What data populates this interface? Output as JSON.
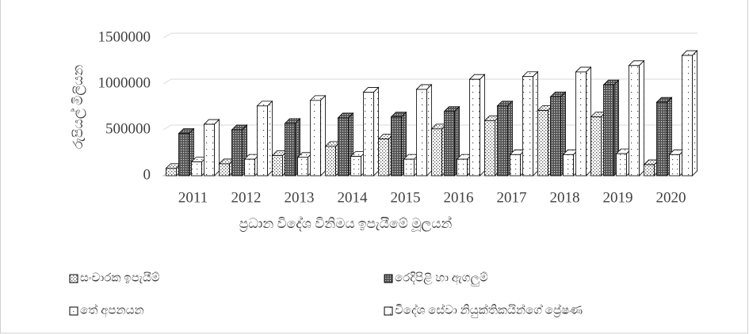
{
  "chart_data": {
    "type": "bar3d",
    "x_label": "ප්‍රධාන විදේශ විනිමය ඉපැයීමේ මූලයන්",
    "y_label": "රුපියල් මිලියන",
    "categories": [
      "2011",
      "2012",
      "2013",
      "2014",
      "2015",
      "2016",
      "2017",
      "2018",
      "2019",
      "2020"
    ],
    "series": [
      {
        "name": "සංචාරක ඉපැයීම්",
        "values": [
          80000,
          130000,
          220000,
          320000,
          400000,
          510000,
          600000,
          710000,
          640000,
          120000
        ]
      },
      {
        "name": "රෙදිපිළි හා ඇගලුම්",
        "values": [
          460000,
          500000,
          570000,
          630000,
          640000,
          700000,
          760000,
          860000,
          990000,
          800000
        ]
      },
      {
        "name": "තේ අපනයන",
        "values": [
          150000,
          180000,
          200000,
          210000,
          180000,
          180000,
          230000,
          230000,
          240000,
          230000
        ]
      },
      {
        "name": "විදේශ සේවා නියුක්තිකයින්ගේ ප්‍රේෂණ",
        "values": [
          560000,
          760000,
          820000,
          910000,
          940000,
          1050000,
          1080000,
          1130000,
          1200000,
          1310000
        ]
      }
    ],
    "ylim": [
      0,
      1500000
    ],
    "yticks": [
      0,
      500000,
      1000000,
      1500000
    ],
    "grid": true
  }
}
